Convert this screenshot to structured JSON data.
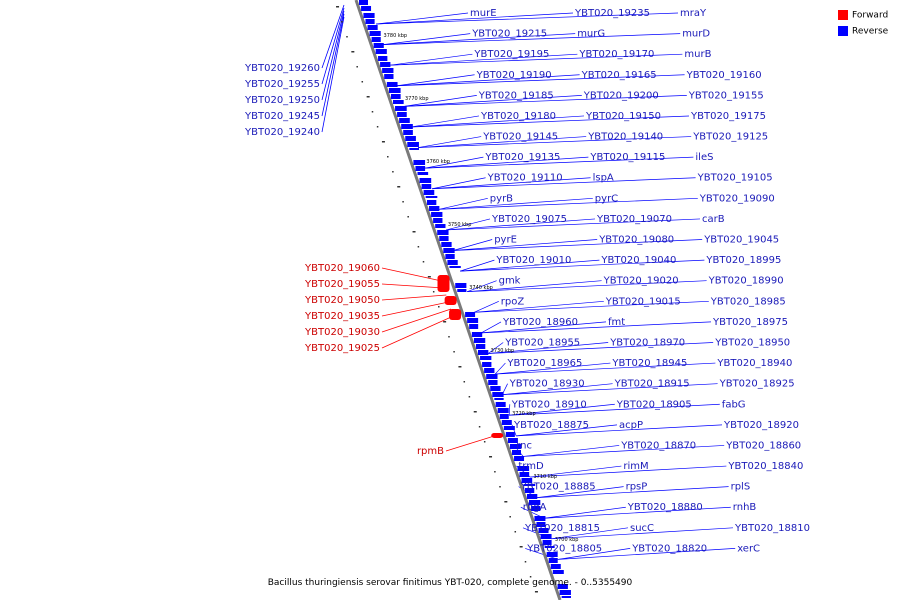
{
  "caption": "Bacillus thuringiensis serovar finitimus YBT-020, complete genome. - 0..5355490",
  "colors": {
    "forward": "#ff0000",
    "reverse": "#0000ff",
    "label_forward": "#cc0000",
    "label_reverse": "#1a1ab8",
    "backbone": "#7a7a7a"
  },
  "legend": [
    {
      "label": "Forward",
      "color": "#ff0000"
    },
    {
      "label": "Reverse",
      "color": "#0000ff"
    }
  ],
  "ruler": [
    "3780 kbp",
    "3770 kbp",
    "3760 kbp",
    "3750 kbp",
    "3740 kbp",
    "3730 kbp",
    "3720 kbp",
    "3710 kbp",
    "3700 kbp"
  ],
  "labels_left_top": [
    "YBT020_19260",
    "YBT020_19255",
    "YBT020_19250",
    "YBT020_19245",
    "YBT020_19240"
  ],
  "labels_forward": [
    "YBT020_19060",
    "YBT020_19055",
    "YBT020_19050",
    "YBT020_19035",
    "YBT020_19030",
    "YBT020_19025",
    "rpmB"
  ],
  "labels_reverse": [
    "murE",
    "YBT020_19235",
    "mraY",
    "YBT020_19215",
    "murG",
    "murD",
    "YBT020_19195",
    "YBT020_19170",
    "murB",
    "YBT020_19190",
    "YBT020_19165",
    "YBT020_19160",
    "YBT020_19185",
    "YBT020_19200",
    "YBT020_19155",
    "YBT020_19180",
    "YBT020_19150",
    "YBT020_19175",
    "YBT020_19145",
    "YBT020_19140",
    "YBT020_19125",
    "YBT020_19135",
    "YBT020_19115",
    "ileS",
    "YBT020_19110",
    "lspA",
    "YBT020_19105",
    "pyrB",
    "pyrC",
    "YBT020_19090",
    "YBT020_19075",
    "YBT020_19070",
    "carB",
    "pyrE",
    "YBT020_19080",
    "YBT020_19045",
    "YBT020_19010",
    "YBT020_19040",
    "YBT020_18995",
    "gmk",
    "YBT020_19020",
    "YBT020_18990",
    "rpoZ",
    "YBT020_19015",
    "YBT020_18985",
    "YBT020_18960",
    "fmt",
    "YBT020_18975",
    "YBT020_18955",
    "YBT020_18970",
    "YBT020_18950",
    "YBT020_18965",
    "YBT020_18945",
    "YBT020_18940",
    "YBT020_18930",
    "YBT020_18915",
    "YBT020_18925",
    "YBT020_18910",
    "YBT020_18905",
    "fabG",
    "YBT020_18875",
    "acpP",
    "YBT020_18920",
    "rnc",
    "YBT020_18870",
    "YBT020_18860",
    "trmD",
    "rimM",
    "YBT020_18840",
    "YBT020_18885",
    "rpsP",
    "rplS",
    "rbgA",
    "YBT020_18880",
    "rnhB",
    "YBT020_18815",
    "sucC",
    "YBT020_18810",
    "YBT020_18805",
    "YBT020_18820",
    "xerC"
  ]
}
